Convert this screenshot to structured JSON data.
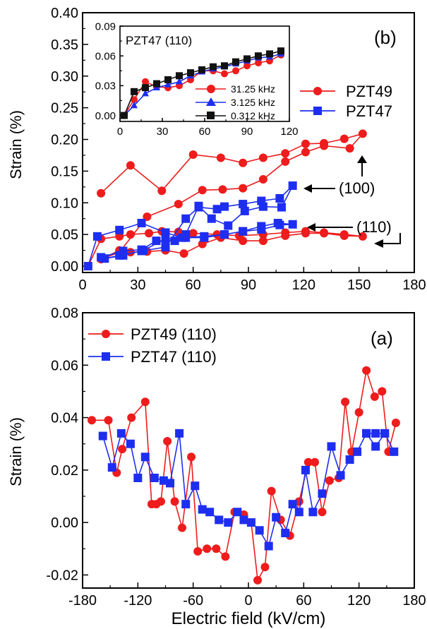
{
  "xlabel": "Electric field (kV/cm)",
  "colors": {
    "red": "#ee1c1c",
    "blue": "#1e2ef0",
    "black": "#111111"
  },
  "chart_data": [
    {
      "id": "b",
      "type": "line",
      "panel_label": "(b)",
      "ylabel": "Strain (%)",
      "xlim": [
        0,
        180
      ],
      "ylim": [
        -0.01,
        0.4
      ],
      "xticks": [
        "0",
        "30",
        "60",
        "90",
        "120",
        "150",
        "180"
      ],
      "yticks": [
        "0.00",
        "0.05",
        "0.10",
        "0.15",
        "0.20",
        "0.25",
        "0.30",
        "0.35",
        "0.40"
      ],
      "legend_position": "right",
      "series": [
        {
          "name": "PZT49",
          "color": "#ee1c1c",
          "marker": "circle",
          "points": [
            [
              3,
              0.0
            ],
            [
              10,
              0.043
            ],
            [
              20,
              0.047
            ],
            [
              26,
              0.05
            ],
            [
              36,
              0.052
            ],
            [
              43,
              0.055
            ],
            [
              52,
              0.054
            ],
            [
              60,
              0.052
            ],
            [
              73,
              0.05
            ],
            [
              85,
              0.048
            ],
            [
              98,
              0.05
            ],
            [
              110,
              0.053
            ],
            [
              121,
              0.055
            ],
            [
              131,
              0.053
            ],
            [
              142,
              0.05
            ],
            [
              152,
              0.047
            ],
            [
              142,
              0.048
            ],
            [
              131,
              0.052
            ],
            [
              121,
              0.052
            ],
            [
              110,
              0.048
            ],
            [
              98,
              0.04
            ],
            [
              87,
              0.04
            ],
            [
              75,
              0.045
            ],
            [
              65,
              0.035
            ],
            [
              55,
              0.02
            ],
            [
              45,
              0.025
            ],
            [
              35,
              0.023
            ],
            [
              26,
              0.022
            ],
            [
              20,
              0.025
            ],
            [
              10,
              0.011
            ],
            [
              20,
              0.022
            ],
            [
              35,
              0.078
            ],
            [
              52,
              0.098
            ],
            [
              65,
              0.12
            ],
            [
              76,
              0.121
            ],
            [
              87,
              0.123
            ],
            [
              98,
              0.137
            ],
            [
              110,
              0.165
            ],
            [
              121,
              0.18
            ],
            [
              131,
              0.19
            ],
            [
              145,
              0.186
            ],
            [
              152,
              0.209
            ],
            [
              142,
              0.201
            ],
            [
              131,
              0.194
            ],
            [
              121,
              0.193
            ],
            [
              110,
              0.178
            ],
            [
              98,
              0.171
            ],
            [
              87,
              0.163
            ],
            [
              75,
              0.171
            ],
            [
              60,
              0.176
            ],
            [
              43,
              0.119
            ],
            [
              26,
              0.159
            ],
            [
              10,
              0.115
            ]
          ]
        },
        {
          "name": "PZT47",
          "color": "#1e2ef0",
          "marker": "square",
          "points": [
            [
              3,
              0.0
            ],
            [
              8,
              0.047
            ],
            [
              20,
              0.057
            ],
            [
              32,
              0.068
            ],
            [
              45,
              0.053
            ],
            [
              54,
              0.045
            ],
            [
              66,
              0.047
            ],
            [
              77,
              0.05
            ],
            [
              87,
              0.055
            ],
            [
              97,
              0.058
            ],
            [
              107,
              0.065
            ],
            [
              114,
              0.066
            ],
            [
              106,
              0.068
            ],
            [
              97,
              0.063
            ],
            [
              87,
              0.055
            ],
            [
              77,
              0.05
            ],
            [
              66,
              0.045
            ],
            [
              56,
              0.045
            ],
            [
              45,
              0.043
            ],
            [
              33,
              0.025
            ],
            [
              22,
              0.017
            ],
            [
              12,
              0.012
            ],
            [
              20,
              0.017
            ],
            [
              32,
              0.024
            ],
            [
              45,
              0.03
            ],
            [
              56,
              0.075
            ],
            [
              63,
              0.093
            ],
            [
              73,
              0.09
            ],
            [
              77,
              0.094
            ],
            [
              87,
              0.098
            ],
            [
              97,
              0.103
            ],
            [
              107,
              0.107
            ],
            [
              114,
              0.127
            ],
            [
              108,
              0.093
            ],
            [
              98,
              0.094
            ],
            [
              88,
              0.087
            ],
            [
              79,
              0.064
            ],
            [
              70,
              0.075
            ],
            [
              63,
              0.095
            ],
            [
              56,
              0.05
            ],
            [
              50,
              0.04
            ],
            [
              40,
              0.04
            ],
            [
              32,
              0.026
            ],
            [
              22,
              0.024
            ],
            [
              10,
              0.014
            ]
          ]
        }
      ],
      "annotations": [
        {
          "text": "(100)",
          "x": 135,
          "y": 0.13
        },
        {
          "text": "(110)",
          "x": 141,
          "y": 0.068
        }
      ]
    },
    {
      "id": "b_inset",
      "type": "line",
      "title": "PZT47 (110)",
      "xlim": [
        0,
        120
      ],
      "ylim": [
        -0.006,
        0.09
      ],
      "xticks": [
        "0",
        "30",
        "60",
        "90",
        "120"
      ],
      "yticks": [
        "0.00",
        "0.03",
        "0.06",
        "0.09"
      ],
      "series": [
        {
          "name": "31.25 kHz",
          "color": "#ee1c1c",
          "marker": "circle",
          "x": [
            3,
            10,
            18,
            26,
            34,
            42,
            50,
            58,
            66,
            74,
            82,
            90,
            98,
            106,
            114
          ],
          "y": [
            0.0,
            0.016,
            0.034,
            0.029,
            0.028,
            0.03,
            0.036,
            0.045,
            0.045,
            0.042,
            0.045,
            0.05,
            0.053,
            0.055,
            0.061
          ]
        },
        {
          "name": "3.125 kHz",
          "color": "#1e2ef0",
          "marker": "triangle",
          "x": [
            3,
            10,
            18,
            26,
            34,
            42,
            50,
            58,
            66,
            74,
            82,
            90,
            98,
            106,
            114
          ],
          "y": [
            0.0,
            0.01,
            0.022,
            0.028,
            0.031,
            0.034,
            0.04,
            0.044,
            0.047,
            0.049,
            0.052,
            0.055,
            0.058,
            0.059,
            0.062
          ]
        },
        {
          "name": "0.312 kHz",
          "color": "#111111",
          "marker": "square",
          "x": [
            3,
            10,
            18,
            26,
            34,
            42,
            50,
            58,
            66,
            74,
            82,
            90,
            98,
            106,
            114
          ],
          "y": [
            0.0,
            0.024,
            0.028,
            0.032,
            0.036,
            0.04,
            0.043,
            0.046,
            0.049,
            0.05,
            0.054,
            0.057,
            0.06,
            0.062,
            0.065
          ]
        }
      ]
    },
    {
      "id": "a",
      "type": "line",
      "panel_label": "(a)",
      "ylabel": "Strain (%)",
      "xlim": [
        -180,
        180
      ],
      "ylim": [
        -0.025,
        0.08
      ],
      "xticks": [
        "-180",
        "-120",
        "-60",
        "0",
        "60",
        "120",
        "180"
      ],
      "yticks": [
        "-0.02",
        "0.00",
        "0.02",
        "0.04",
        "0.06",
        "0.08"
      ],
      "legend_position": "top-left",
      "series": [
        {
          "name": "PZT49 (110)",
          "color": "#ee1c1c",
          "marker": "circle",
          "points": [
            [
              -170,
              0.039
            ],
            [
              -152,
              0.039
            ],
            [
              -143,
              0.019
            ],
            [
              -137,
              0.028
            ],
            [
              -127,
              0.04
            ],
            [
              -112,
              0.046
            ],
            [
              -105,
              0.007
            ],
            [
              -100,
              0.007
            ],
            [
              -95,
              0.008
            ],
            [
              -88,
              0.031
            ],
            [
              -80,
              0.008
            ],
            [
              -72,
              -0.002
            ],
            [
              -62,
              0.025
            ],
            [
              -55,
              -0.011
            ],
            [
              -45,
              -0.01
            ],
            [
              -35,
              -0.01
            ],
            [
              -25,
              -0.013
            ],
            [
              -15,
              0.004
            ],
            [
              -5,
              0.003
            ],
            [
              3,
              -0.0
            ],
            [
              10,
              -0.022
            ],
            [
              18,
              -0.017
            ],
            [
              25,
              0.012
            ],
            [
              35,
              0.001
            ],
            [
              45,
              -0.005
            ],
            [
              55,
              0.008
            ],
            [
              65,
              0.023
            ],
            [
              72,
              0.023
            ],
            [
              80,
              0.004
            ],
            [
              88,
              0.016
            ],
            [
              98,
              0.017
            ],
            [
              105,
              0.046
            ],
            [
              112,
              0.027
            ],
            [
              120,
              0.042
            ],
            [
              128,
              0.058
            ],
            [
              137,
              0.048
            ],
            [
              145,
              0.05
            ],
            [
              152,
              0.027
            ],
            [
              160,
              0.038
            ]
          ]
        },
        {
          "name": "PZT47 (110)",
          "color": "#1e2ef0",
          "marker": "square",
          "points": [
            [
              -158,
              0.033
            ],
            [
              -148,
              0.021
            ],
            [
              -138,
              0.034
            ],
            [
              -128,
              0.03
            ],
            [
              -120,
              0.017
            ],
            [
              -112,
              0.025
            ],
            [
              -102,
              0.017
            ],
            [
              -92,
              0.016
            ],
            [
              -85,
              0.015
            ],
            [
              -75,
              0.034
            ],
            [
              -68,
              0.007
            ],
            [
              -58,
              0.014
            ],
            [
              -50,
              0.005
            ],
            [
              -42,
              0.004
            ],
            [
              -32,
              0.001
            ],
            [
              -22,
              0.0
            ],
            [
              -12,
              0.004
            ],
            [
              -5,
              0.001
            ],
            [
              3,
              0.0
            ],
            [
              12,
              -0.003
            ],
            [
              22,
              -0.009
            ],
            [
              30,
              0.002
            ],
            [
              40,
              -0.004
            ],
            [
              48,
              0.007
            ],
            [
              55,
              0.004
            ],
            [
              62,
              0.02
            ],
            [
              70,
              0.004
            ],
            [
              80,
              0.011
            ],
            [
              90,
              0.029
            ],
            [
              100,
              0.018
            ],
            [
              110,
              0.024
            ],
            [
              118,
              0.027
            ],
            [
              128,
              0.034
            ],
            [
              138,
              0.029
            ],
            [
              148,
              0.034
            ],
            [
              158,
              0.027
            ],
            [
              148,
              0.034
            ],
            [
              138,
              0.034
            ],
            [
              128,
              0.034
            ]
          ]
        }
      ]
    }
  ]
}
